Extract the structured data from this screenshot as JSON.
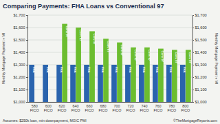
{
  "chart_data": {
    "type": "bar",
    "title": "Comparing Payments: FHA Loans vs Conventional 97",
    "y_label": "Monthly Mortgage Payment + MI",
    "annotations": [
      "Assumes: $250k loan, min downpayment, MGIC PMI",
      "©TheMortgageReports.com"
    ],
    "categories": [
      "580 FICO",
      "600 FICO",
      "620 FICO",
      "640 FICO",
      "660 FICO",
      "680 FICO",
      "700 FICO",
      "720 FICO",
      "740 FICO",
      "760 FICO",
      "780 FICO",
      "800 FICO"
    ],
    "series": [
      {
        "name": "FHA",
        "color": "#2a63ad",
        "values": [
          1300,
          1300,
          1300,
          1300,
          1300,
          1300,
          1300,
          1300,
          1300,
          1300,
          1300,
          1300
        ]
      },
      {
        "name": "Conv 97",
        "color": "#6cbd2f",
        "values": [
          null,
          null,
          1630,
          1600,
          1570,
          1510,
          1480,
          1440,
          1440,
          1430,
          1420,
          1420
        ]
      }
    ],
    "ylim": [
      1000,
      1700
    ],
    "yticks": [
      {
        "value": 1000,
        "label": "$1,000"
      },
      {
        "value": 1100,
        "label": "$1,100"
      },
      {
        "value": 1200,
        "label": "$1,200"
      },
      {
        "value": 1300,
        "label": "$1,300"
      },
      {
        "value": 1400,
        "label": "$1,400"
      },
      {
        "value": 1500,
        "label": "$1,500"
      },
      {
        "value": 1600,
        "label": "$1,600"
      },
      {
        "value": 1700,
        "label": "$1,700"
      }
    ],
    "grid": true
  }
}
